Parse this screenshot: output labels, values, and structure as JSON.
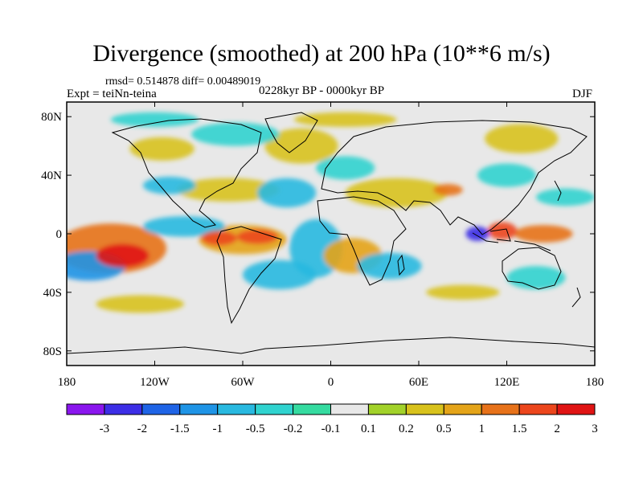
{
  "chart_data": {
    "type": "heatmap",
    "title": "Divergence (smoothed) at 200 hPa (10**6 m/s)",
    "stats": "rmsd= 0.514878 diff= 0.00489019",
    "experiment": "Expt = teiNn-teina",
    "period": "0228kyr BP - 0000kyr BP",
    "season": "DJF",
    "projection": "cylindrical equidistant",
    "x_range": [
      -180,
      180
    ],
    "y_range": [
      -90,
      90
    ],
    "x_ticks": [
      {
        "value": -180,
        "label": "180"
      },
      {
        "value": -120,
        "label": "120W"
      },
      {
        "value": -60,
        "label": "60W"
      },
      {
        "value": 0,
        "label": "0"
      },
      {
        "value": 60,
        "label": "60E"
      },
      {
        "value": 120,
        "label": "120E"
      },
      {
        "value": 180,
        "label": "180"
      }
    ],
    "y_ticks": [
      {
        "value": 80,
        "label": "80N"
      },
      {
        "value": 40,
        "label": "40N"
      },
      {
        "value": 0,
        "label": "0"
      },
      {
        "value": -40,
        "label": "40S"
      },
      {
        "value": -80,
        "label": "80S"
      }
    ],
    "colorbar": {
      "levels": [
        "-3",
        "-2",
        "-1.5",
        "-1",
        "-0.5",
        "-0.2",
        "-0.1",
        "0.1",
        "0.2",
        "0.5",
        "1",
        "1.5",
        "2",
        "3"
      ],
      "colors": [
        "#8a16ee",
        "#3c2ee6",
        "#1f64e6",
        "#1f94e6",
        "#29b9e0",
        "#30d3cf",
        "#35dba0",
        "#e8e8e8",
        "#a2d22a",
        "#d8c21c",
        "#e4a419",
        "#e7721a",
        "#ec461c",
        "#e01414"
      ]
    },
    "features": [
      {
        "lon": -142,
        "lat": -15,
        "rx": 18,
        "ry": 8,
        "value": 3
      },
      {
        "lon": -150,
        "lat": -10,
        "rx": 38,
        "ry": 17,
        "value": 1.2
      },
      {
        "lon": -165,
        "lat": -22,
        "rx": 25,
        "ry": 10,
        "value": -1.3
      },
      {
        "lon": -100,
        "lat": 5,
        "rx": 28,
        "ry": 7,
        "value": -0.6
      },
      {
        "lon": -76,
        "lat": -3,
        "rx": 12,
        "ry": 5,
        "value": 2
      },
      {
        "lon": -50,
        "lat": -2,
        "rx": 14,
        "ry": 5,
        "value": 1.6
      },
      {
        "lon": -60,
        "lat": -4,
        "rx": 30,
        "ry": 10,
        "value": 0.6
      },
      {
        "lon": -70,
        "lat": 30,
        "rx": 35,
        "ry": 8,
        "value": 0.4
      },
      {
        "lon": -110,
        "lat": 33,
        "rx": 18,
        "ry": 6,
        "value": -0.5
      },
      {
        "lon": -115,
        "lat": 58,
        "rx": 22,
        "ry": 8,
        "value": 0.3
      },
      {
        "lon": -65,
        "lat": 68,
        "rx": 30,
        "ry": 8,
        "value": -0.4
      },
      {
        "lon": -20,
        "lat": 60,
        "rx": 25,
        "ry": 12,
        "value": 0.3
      },
      {
        "lon": -30,
        "lat": 28,
        "rx": 20,
        "ry": 10,
        "value": -0.6
      },
      {
        "lon": -10,
        "lat": -10,
        "rx": 18,
        "ry": 20,
        "value": -0.8
      },
      {
        "lon": -35,
        "lat": -28,
        "rx": 25,
        "ry": 10,
        "value": -0.5
      },
      {
        "lon": 15,
        "lat": -15,
        "rx": 20,
        "ry": 12,
        "value": 0.7
      },
      {
        "lon": 40,
        "lat": -22,
        "rx": 22,
        "ry": 9,
        "value": -0.5
      },
      {
        "lon": 45,
        "lat": 28,
        "rx": 35,
        "ry": 10,
        "value": 0.5
      },
      {
        "lon": 80,
        "lat": 30,
        "rx": 10,
        "ry": 4,
        "value": 1.5
      },
      {
        "lon": 10,
        "lat": 45,
        "rx": 20,
        "ry": 8,
        "value": -0.4
      },
      {
        "lon": 100,
        "lat": 0,
        "rx": 8,
        "ry": 5,
        "value": -2
      },
      {
        "lon": 117,
        "lat": 2,
        "rx": 10,
        "ry": 6,
        "value": 1.6
      },
      {
        "lon": 145,
        "lat": 0,
        "rx": 20,
        "ry": 6,
        "value": 1.2
      },
      {
        "lon": 120,
        "lat": 40,
        "rx": 20,
        "ry": 8,
        "value": -0.3
      },
      {
        "lon": 130,
        "lat": 65,
        "rx": 25,
        "ry": 10,
        "value": 0.4
      },
      {
        "lon": 10,
        "lat": 78,
        "rx": 35,
        "ry": 5,
        "value": 0.5
      },
      {
        "lon": -120,
        "lat": 78,
        "rx": 30,
        "ry": 5,
        "value": -0.3
      },
      {
        "lon": 140,
        "lat": -30,
        "rx": 20,
        "ry": 8,
        "value": -0.4
      },
      {
        "lon": 90,
        "lat": -40,
        "rx": 25,
        "ry": 5,
        "value": 0.3
      },
      {
        "lon": -130,
        "lat": -48,
        "rx": 30,
        "ry": 6,
        "value": 0.3
      },
      {
        "lon": 160,
        "lat": 25,
        "rx": 20,
        "ry": 6,
        "value": -0.3
      }
    ]
  }
}
